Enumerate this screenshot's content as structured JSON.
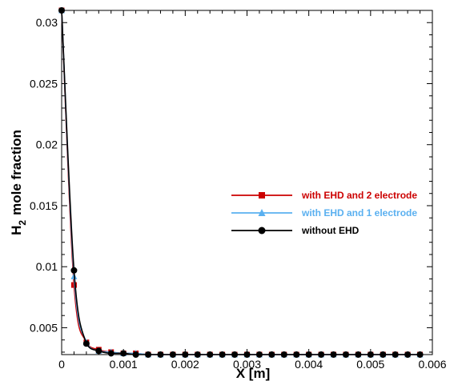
{
  "chart_data": {
    "type": "line",
    "xlabel": "X [m]",
    "ylabel_main": "H",
    "ylabel_sub": "2",
    "ylabel_rest": "mole fraction",
    "xlim": [
      0,
      0.006
    ],
    "ylim": [
      0.0028,
      0.031
    ],
    "x_ticks": [
      0,
      0.001,
      0.002,
      0.003,
      0.004,
      0.005,
      0.006
    ],
    "x_tick_labels": [
      "0",
      "0.001",
      "0.002",
      "0.003",
      "0.004",
      "0.005",
      "0.006"
    ],
    "y_ticks": [
      0.005,
      0.01,
      0.015,
      0.02,
      0.025,
      0.03
    ],
    "y_tick_labels": [
      "0.005",
      "0.01",
      "0.015",
      "0.02",
      "0.025",
      "0.03"
    ],
    "grid": false,
    "legend_position": "center-right",
    "series": [
      {
        "name": "with EHD and 2 electrode",
        "color": "#cc0000",
        "marker": "square",
        "x": [
          0,
          0.0002,
          0.0004,
          0.0006,
          0.0008,
          0.001,
          0.0012,
          0.0014,
          0.0016,
          0.0018,
          0.002,
          0.0022,
          0.0024,
          0.0026,
          0.0028,
          0.003,
          0.0032,
          0.0034,
          0.0036,
          0.0038,
          0.004,
          0.0042,
          0.0044,
          0.0046,
          0.0048,
          0.005,
          0.0052,
          0.0054,
          0.0056,
          0.0058
        ],
        "y": [
          0.031,
          0.0085,
          0.0038,
          0.0032,
          0.003,
          0.0029,
          0.0029,
          0.0028,
          0.0028,
          0.0028,
          0.0028,
          0.0028,
          0.0028,
          0.0028,
          0.0028,
          0.0028,
          0.0028,
          0.0028,
          0.0028,
          0.0028,
          0.0028,
          0.0028,
          0.0028,
          0.0028,
          0.0028,
          0.0028,
          0.0028,
          0.0028,
          0.0028,
          0.0028
        ]
      },
      {
        "name": "with EHD and 1 electrode",
        "color": "#5ab0f0",
        "marker": "triangle",
        "x": [
          0,
          0.0002,
          0.0004,
          0.0006,
          0.0008,
          0.001,
          0.0012,
          0.0014,
          0.0016,
          0.0018,
          0.002,
          0.0022,
          0.0024,
          0.0026,
          0.0028,
          0.003,
          0.0032,
          0.0034,
          0.0036,
          0.0038,
          0.004,
          0.0042,
          0.0044,
          0.0046,
          0.0048,
          0.005,
          0.0052,
          0.0054,
          0.0056,
          0.0058
        ],
        "y": [
          0.031,
          0.0092,
          0.0038,
          0.0031,
          0.003,
          0.0029,
          0.0029,
          0.0028,
          0.0028,
          0.0028,
          0.0028,
          0.0028,
          0.0028,
          0.0028,
          0.0028,
          0.0028,
          0.0028,
          0.0028,
          0.0028,
          0.0028,
          0.0028,
          0.0028,
          0.0028,
          0.0028,
          0.0028,
          0.0028,
          0.0028,
          0.0028,
          0.0028,
          0.0028
        ]
      },
      {
        "name": "without EHD",
        "color": "#000000",
        "marker": "circle",
        "x": [
          0,
          0.0002,
          0.0004,
          0.0006,
          0.0008,
          0.001,
          0.0012,
          0.0014,
          0.0016,
          0.0018,
          0.002,
          0.0022,
          0.0024,
          0.0026,
          0.0028,
          0.003,
          0.0032,
          0.0034,
          0.0036,
          0.0038,
          0.004,
          0.0042,
          0.0044,
          0.0046,
          0.0048,
          0.005,
          0.0052,
          0.0054,
          0.0056,
          0.0058
        ],
        "y": [
          0.031,
          0.0097,
          0.0037,
          0.0031,
          0.0029,
          0.0029,
          0.0028,
          0.0028,
          0.0028,
          0.0028,
          0.0028,
          0.0028,
          0.0028,
          0.0028,
          0.0028,
          0.0028,
          0.0028,
          0.0028,
          0.0028,
          0.0028,
          0.0028,
          0.0028,
          0.0028,
          0.0028,
          0.0028,
          0.0028,
          0.0028,
          0.0028,
          0.0028,
          0.0028
        ]
      }
    ]
  }
}
